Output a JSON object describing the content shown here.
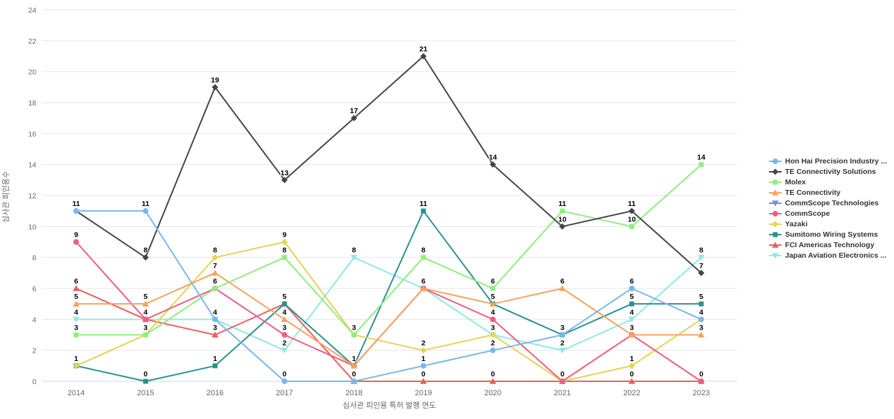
{
  "chart_data": {
    "type": "line",
    "title": "",
    "xlabel": "심사관 피인용 특허 발행 연도",
    "ylabel": "심사관 피인용수",
    "categories": [
      "2014",
      "2015",
      "2016",
      "2017",
      "2018",
      "2019",
      "2020",
      "2021",
      "2022",
      "2023"
    ],
    "ylim": [
      0,
      24
    ],
    "yticks": [
      0,
      2,
      4,
      6,
      8,
      10,
      12,
      14,
      16,
      18,
      20,
      22,
      24
    ],
    "grid": "horizontal",
    "legend_position": "right",
    "axis_line_color": "#ccd6eb",
    "grid_color": "#e6e6e6",
    "tick_label_color": "#666666",
    "data_label_color": "#000000",
    "series": [
      {
        "name": "Hon Hai Precision Industry ...",
        "color": "#7cb5ec",
        "marker": "circle",
        "values": [
          11,
          11,
          4,
          0,
          0,
          1,
          2,
          3,
          6,
          4
        ]
      },
      {
        "name": "TE Connectivity Solutions",
        "color": "#434348",
        "marker": "diamond",
        "values": [
          11,
          8,
          19,
          13,
          17,
          21,
          14,
          10,
          11,
          7
        ]
      },
      {
        "name": "Molex",
        "color": "#90ed7d",
        "marker": "square",
        "values": [
          3,
          3,
          6,
          8,
          3,
          8,
          6,
          11,
          10,
          14
        ]
      },
      {
        "name": "TE Connectivity",
        "color": "#f7a35c",
        "marker": "triangle",
        "values": [
          5,
          5,
          7,
          4,
          1,
          6,
          5,
          6,
          3,
          3
        ]
      },
      {
        "name": "CommScope Technologies",
        "color": "#8085e9",
        "marker": "triangle-down",
        "values": [
          null,
          null,
          null,
          null,
          null,
          null,
          null,
          null,
          null,
          null
        ]
      },
      {
        "name": "CommScope",
        "color": "#f15c80",
        "marker": "circle",
        "values": [
          9,
          4,
          6,
          3,
          1,
          6,
          4,
          0,
          3,
          0
        ]
      },
      {
        "name": "Yazaki",
        "color": "#e4d354",
        "marker": "diamond",
        "values": [
          1,
          3,
          8,
          9,
          3,
          2,
          3,
          0,
          1,
          4
        ]
      },
      {
        "name": "Sumitomo Wiring Systems",
        "color": "#2b908f",
        "marker": "square",
        "values": [
          1,
          0,
          1,
          5,
          1,
          11,
          5,
          3,
          5,
          5
        ]
      },
      {
        "name": "FCI Americas Technology",
        "color": "#f45b5b",
        "marker": "triangle",
        "values": [
          6,
          4,
          3,
          5,
          0,
          0,
          0,
          0,
          0,
          0
        ]
      },
      {
        "name": "Japan Aviation Electronics ...",
        "color": "#91e8e1",
        "marker": "triangle-down",
        "values": [
          4,
          4,
          4,
          2,
          8,
          6,
          3,
          2,
          4,
          8
        ]
      }
    ]
  }
}
